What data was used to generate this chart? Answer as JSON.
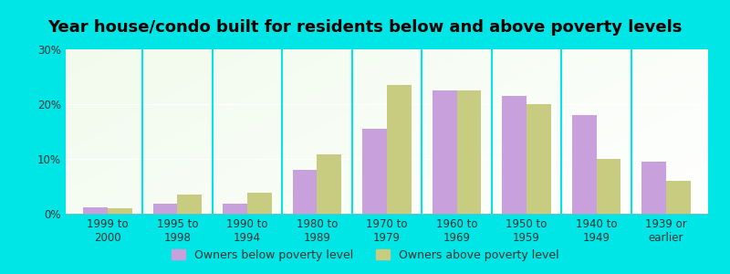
{
  "title": "Year house/condo built for residents below and above poverty levels",
  "categories": [
    "1999 to\n2000",
    "1995 to\n1998",
    "1990 to\n1994",
    "1980 to\n1989",
    "1970 to\n1979",
    "1960 to\n1969",
    "1950 to\n1959",
    "1940 to\n1949",
    "1939 or\nearlier"
  ],
  "below_poverty": [
    1.2,
    1.8,
    1.8,
    8.0,
    15.5,
    22.5,
    21.5,
    18.0,
    9.5
  ],
  "above_poverty": [
    1.0,
    3.5,
    3.8,
    10.8,
    23.5,
    22.5,
    20.0,
    10.0,
    6.0
  ],
  "below_color": "#c8a0dc",
  "above_color": "#c8cc80",
  "background_outer": "#00e5e5",
  "ylim": [
    0,
    30
  ],
  "yticks": [
    0,
    10,
    20,
    30
  ],
  "ytick_labels": [
    "0%",
    "10%",
    "20%",
    "30%"
  ],
  "bar_width": 0.35,
  "title_fontsize": 13,
  "tick_fontsize": 8.5,
  "legend_fontsize": 9,
  "legend_label_below": "Owners below poverty level",
  "legend_label_above": "Owners above poverty level",
  "grad_top_left": "#d0eec8",
  "grad_bottom_right": "#f5fff0"
}
